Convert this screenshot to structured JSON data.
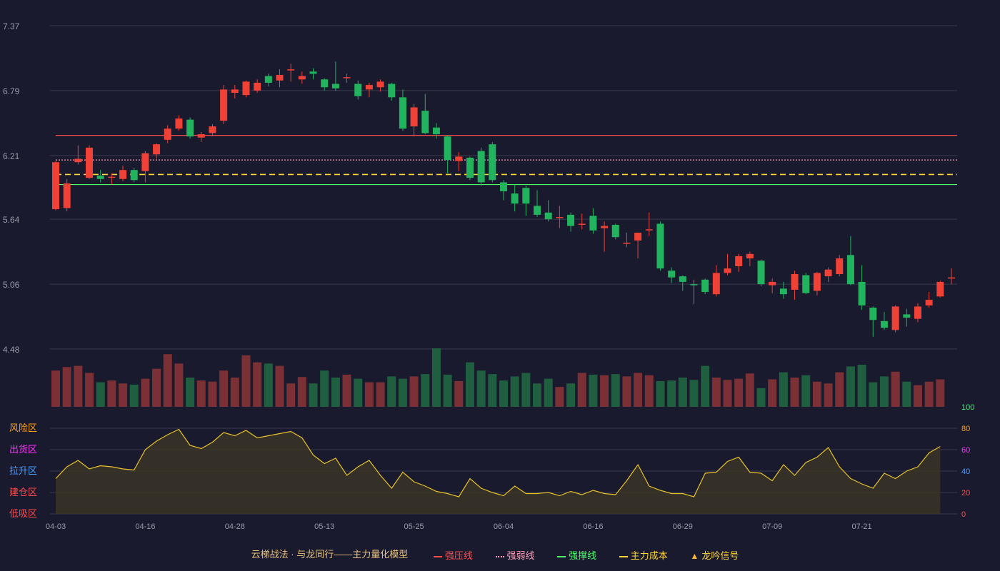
{
  "chart_data": {
    "type": "candlestick",
    "price_axis": {
      "ticks": [
        7.37,
        6.79,
        6.21,
        5.64,
        5.06,
        4.48
      ],
      "ylim": [
        4.48,
        7.37
      ]
    },
    "x_tick_labels": [
      {
        "index": 0,
        "label": "04-03"
      },
      {
        "index": 8,
        "label": "04-16"
      },
      {
        "index": 16,
        "label": "04-28"
      },
      {
        "index": 24,
        "label": "05-13"
      },
      {
        "index": 32,
        "label": "05-25"
      },
      {
        "index": 40,
        "label": "06-04"
      },
      {
        "index": 48,
        "label": "06-16"
      },
      {
        "index": 56,
        "label": "06-29"
      },
      {
        "index": 64,
        "label": "07-09"
      },
      {
        "index": 72,
        "label": "07-21"
      }
    ],
    "candles": [
      {
        "o": 5.73,
        "c": 6.15,
        "h": 6.16,
        "l": 5.72
      },
      {
        "o": 5.74,
        "c": 5.96,
        "h": 6.0,
        "l": 5.71
      },
      {
        "o": 6.15,
        "c": 6.18,
        "h": 6.3,
        "l": 6.13
      },
      {
        "o": 6.01,
        "c": 6.28,
        "h": 6.3,
        "l": 6.0
      },
      {
        "o": 6.03,
        "c": 6.0,
        "h": 6.08,
        "l": 5.97
      },
      {
        "o": 6.02,
        "c": 6.02,
        "h": 6.05,
        "l": 5.95
      },
      {
        "o": 6.0,
        "c": 6.08,
        "h": 6.12,
        "l": 5.98
      },
      {
        "o": 6.08,
        "c": 5.99,
        "h": 6.1,
        "l": 5.97
      },
      {
        "o": 6.07,
        "c": 6.23,
        "h": 6.25,
        "l": 5.97
      },
      {
        "o": 6.22,
        "c": 6.31,
        "h": 6.32,
        "l": 6.18
      },
      {
        "o": 6.35,
        "c": 6.45,
        "h": 6.48,
        "l": 6.32
      },
      {
        "o": 6.45,
        "c": 6.54,
        "h": 6.57,
        "l": 6.43
      },
      {
        "o": 6.53,
        "c": 6.38,
        "h": 6.55,
        "l": 6.36
      },
      {
        "o": 6.37,
        "c": 6.4,
        "h": 6.42,
        "l": 6.33
      },
      {
        "o": 6.41,
        "c": 6.47,
        "h": 6.49,
        "l": 6.38
      },
      {
        "o": 6.52,
        "c": 6.8,
        "h": 6.84,
        "l": 6.49
      },
      {
        "o": 6.77,
        "c": 6.8,
        "h": 6.84,
        "l": 6.72
      },
      {
        "o": 6.75,
        "c": 6.87,
        "h": 6.88,
        "l": 6.73
      },
      {
        "o": 6.79,
        "c": 6.86,
        "h": 6.89,
        "l": 6.77
      },
      {
        "o": 6.92,
        "c": 6.86,
        "h": 6.94,
        "l": 6.83
      },
      {
        "o": 6.88,
        "c": 6.93,
        "h": 6.98,
        "l": 6.82
      },
      {
        "o": 6.97,
        "c": 6.98,
        "h": 7.03,
        "l": 6.87
      },
      {
        "o": 6.89,
        "c": 6.92,
        "h": 6.96,
        "l": 6.85
      },
      {
        "o": 6.96,
        "c": 6.94,
        "h": 6.99,
        "l": 6.89
      },
      {
        "o": 6.89,
        "c": 6.82,
        "h": 6.9,
        "l": 6.79
      },
      {
        "o": 6.85,
        "c": 6.81,
        "h": 7.05,
        "l": 6.79
      },
      {
        "o": 6.91,
        "c": 6.91,
        "h": 6.94,
        "l": 6.86
      },
      {
        "o": 6.85,
        "c": 6.74,
        "h": 6.88,
        "l": 6.71
      },
      {
        "o": 6.8,
        "c": 6.84,
        "h": 6.86,
        "l": 6.73
      },
      {
        "o": 6.82,
        "c": 6.87,
        "h": 6.89,
        "l": 6.78
      },
      {
        "o": 6.85,
        "c": 6.73,
        "h": 6.86,
        "l": 6.7
      },
      {
        "o": 6.73,
        "c": 6.45,
        "h": 6.8,
        "l": 6.43
      },
      {
        "o": 6.47,
        "c": 6.64,
        "h": 6.67,
        "l": 6.38
      },
      {
        "o": 6.61,
        "c": 6.41,
        "h": 6.76,
        "l": 6.4
      },
      {
        "o": 6.46,
        "c": 6.4,
        "h": 6.5,
        "l": 6.36
      },
      {
        "o": 6.38,
        "c": 6.17,
        "h": 6.39,
        "l": 6.05
      },
      {
        "o": 6.16,
        "c": 6.2,
        "h": 6.24,
        "l": 6.07
      },
      {
        "o": 6.19,
        "c": 6.01,
        "h": 6.2,
        "l": 5.99
      },
      {
        "o": 6.25,
        "c": 5.97,
        "h": 6.28,
        "l": 5.94
      },
      {
        "o": 6.31,
        "c": 5.99,
        "h": 6.33,
        "l": 5.97
      },
      {
        "o": 5.97,
        "c": 5.89,
        "h": 5.99,
        "l": 5.81
      },
      {
        "o": 5.87,
        "c": 5.78,
        "h": 5.95,
        "l": 5.71
      },
      {
        "o": 5.92,
        "c": 5.78,
        "h": 5.94,
        "l": 5.67
      },
      {
        "o": 5.76,
        "c": 5.68,
        "h": 5.9,
        "l": 5.66
      },
      {
        "o": 5.7,
        "c": 5.64,
        "h": 5.81,
        "l": 5.62
      },
      {
        "o": 5.65,
        "c": 5.66,
        "h": 5.76,
        "l": 5.56
      },
      {
        "o": 5.68,
        "c": 5.58,
        "h": 5.7,
        "l": 5.53
      },
      {
        "o": 5.6,
        "c": 5.6,
        "h": 5.69,
        "l": 5.55
      },
      {
        "o": 5.67,
        "c": 5.54,
        "h": 5.74,
        "l": 5.51
      },
      {
        "o": 5.56,
        "c": 5.58,
        "h": 5.62,
        "l": 5.35
      },
      {
        "o": 5.59,
        "c": 5.48,
        "h": 5.6,
        "l": 5.46
      },
      {
        "o": 5.43,
        "c": 5.43,
        "h": 5.52,
        "l": 5.39
      },
      {
        "o": 5.45,
        "c": 5.52,
        "h": 5.52,
        "l": 5.29
      },
      {
        "o": 5.55,
        "c": 5.55,
        "h": 5.7,
        "l": 5.49
      },
      {
        "o": 5.6,
        "c": 5.2,
        "h": 5.62,
        "l": 5.18
      },
      {
        "o": 5.18,
        "c": 5.12,
        "h": 5.21,
        "l": 5.07
      },
      {
        "o": 5.13,
        "c": 5.08,
        "h": 5.14,
        "l": 5.0
      },
      {
        "o": 5.06,
        "c": 5.05,
        "h": 5.1,
        "l": 4.88
      },
      {
        "o": 5.1,
        "c": 4.99,
        "h": 5.11,
        "l": 4.97
      },
      {
        "o": 4.97,
        "c": 5.16,
        "h": 5.23,
        "l": 4.95
      },
      {
        "o": 5.16,
        "c": 5.2,
        "h": 5.33,
        "l": 5.14
      },
      {
        "o": 5.22,
        "c": 5.31,
        "h": 5.33,
        "l": 5.17
      },
      {
        "o": 5.29,
        "c": 5.33,
        "h": 5.35,
        "l": 5.22
      },
      {
        "o": 5.27,
        "c": 5.06,
        "h": 5.28,
        "l": 5.04
      },
      {
        "o": 5.05,
        "c": 5.08,
        "h": 5.11,
        "l": 4.98
      },
      {
        "o": 5.02,
        "c": 4.97,
        "h": 5.08,
        "l": 4.93
      },
      {
        "o": 5.01,
        "c": 5.15,
        "h": 5.18,
        "l": 4.92
      },
      {
        "o": 5.14,
        "c": 4.98,
        "h": 5.16,
        "l": 4.97
      },
      {
        "o": 5.0,
        "c": 5.16,
        "h": 5.17,
        "l": 4.96
      },
      {
        "o": 5.13,
        "c": 5.19,
        "h": 5.21,
        "l": 5.08
      },
      {
        "o": 5.15,
        "c": 5.29,
        "h": 5.32,
        "l": 5.13
      },
      {
        "o": 5.32,
        "c": 5.06,
        "h": 5.49,
        "l": 5.05
      },
      {
        "o": 5.08,
        "c": 4.87,
        "h": 5.23,
        "l": 4.83
      },
      {
        "o": 4.85,
        "c": 4.74,
        "h": 4.86,
        "l": 4.59
      },
      {
        "o": 4.73,
        "c": 4.67,
        "h": 4.81,
        "l": 4.65
      },
      {
        "o": 4.65,
        "c": 4.86,
        "h": 4.87,
        "l": 4.63
      },
      {
        "o": 4.79,
        "c": 4.76,
        "h": 4.84,
        "l": 4.68
      },
      {
        "o": 4.75,
        "c": 4.86,
        "h": 4.89,
        "l": 4.72
      },
      {
        "o": 4.87,
        "c": 4.92,
        "h": 4.99,
        "l": 4.85
      },
      {
        "o": 4.95,
        "c": 5.08,
        "h": 5.09,
        "l": 4.94
      },
      {
        "o": 5.11,
        "c": 5.12,
        "h": 5.2,
        "l": 5.06
      }
    ],
    "volume": [
      0.62,
      0.68,
      0.7,
      0.58,
      0.42,
      0.45,
      0.4,
      0.38,
      0.48,
      0.65,
      0.9,
      0.74,
      0.5,
      0.45,
      0.43,
      0.62,
      0.5,
      0.88,
      0.76,
      0.74,
      0.7,
      0.4,
      0.51,
      0.4,
      0.62,
      0.5,
      0.55,
      0.48,
      0.42,
      0.42,
      0.52,
      0.48,
      0.52,
      0.56,
      1.0,
      0.55,
      0.44,
      0.76,
      0.62,
      0.56,
      0.45,
      0.52,
      0.58,
      0.4,
      0.48,
      0.34,
      0.4,
      0.58,
      0.55,
      0.54,
      0.56,
      0.52,
      0.58,
      0.54,
      0.44,
      0.45,
      0.5,
      0.46,
      0.7,
      0.5,
      0.46,
      0.48,
      0.57,
      0.32,
      0.47,
      0.59,
      0.5,
      0.54,
      0.43,
      0.4,
      0.59,
      0.69,
      0.72,
      0.42,
      0.52,
      0.6,
      0.43,
      0.37,
      0.43,
      0.47
    ],
    "horizontal_lines": [
      {
        "name": "强压线",
        "value": 6.39,
        "color": "#ff4d4d",
        "style": "solid"
      },
      {
        "name": "强弱线",
        "value": 6.17,
        "color": "#ff9eb5",
        "style": "dotted"
      },
      {
        "name": "主力成本",
        "value": 6.04,
        "color": "#ffd633",
        "style": "dashed"
      },
      {
        "name": "强撑线",
        "value": 5.95,
        "color": "#4dff66",
        "style": "solid"
      }
    ],
    "indicator": {
      "right_axis_ticks": [
        {
          "value": 100,
          "color": "#33ff66"
        },
        {
          "value": 80,
          "color": "#ff9f1a"
        },
        {
          "value": 60,
          "color": "#ff33ff"
        },
        {
          "value": 40,
          "color": "#4d9fff"
        },
        {
          "value": 20,
          "color": "#ff4d4d"
        },
        {
          "value": 0,
          "color": "#ff4d4d"
        }
      ],
      "zone_labels": [
        {
          "label": "风险区",
          "level": 80,
          "color": "#ff9f1a"
        },
        {
          "label": "出货区",
          "level": 60,
          "color": "#ff33ff"
        },
        {
          "label": "拉升区",
          "level": 40,
          "color": "#4d9fff"
        },
        {
          "label": "建仓区",
          "level": 20,
          "color": "#ff4d4d"
        },
        {
          "label": "低吸区",
          "level": 0,
          "color": "#ff4d4d"
        }
      ],
      "values": [
        33,
        44,
        50,
        42,
        45,
        44,
        42,
        41,
        60,
        68,
        74,
        79,
        64,
        61,
        67,
        76,
        73,
        78,
        71,
        73,
        75,
        77,
        71,
        55,
        47,
        52,
        36,
        44,
        50,
        36,
        24,
        39,
        30,
        26,
        21,
        19,
        16,
        33,
        24,
        20,
        17,
        26,
        19,
        19,
        20,
        17,
        21,
        18,
        22,
        19,
        18,
        31,
        46,
        26,
        22,
        19,
        19,
        16,
        38,
        39,
        49,
        53,
        39,
        38,
        31,
        46,
        36,
        48,
        53,
        62,
        44,
        33,
        28,
        24,
        38,
        33,
        40,
        44,
        57,
        63
      ],
      "color": "#e8c22a"
    }
  },
  "legend": {
    "title": "云梯战法 · 与龙同行——主力量化模型",
    "items": [
      {
        "label": "强压线",
        "color": "#ff4d4d",
        "style": "solid"
      },
      {
        "label": "强弱线",
        "color": "#ff9eb5",
        "style": "dotted"
      },
      {
        "label": "强撑线",
        "color": "#4dff66",
        "style": "solid"
      },
      {
        "label": "主力成本",
        "color": "#ffd633",
        "style": "dashed"
      },
      {
        "label": "龙吟信号",
        "color": "#ffb833",
        "style": "triangle"
      }
    ]
  },
  "colors": {
    "up": "#ef4136",
    "down": "#22b35e",
    "up_volume": "#7a3034",
    "down_volume": "#1f5e3e",
    "grid": "#3a3a4e",
    "axis_text": "#9a9aaa"
  }
}
